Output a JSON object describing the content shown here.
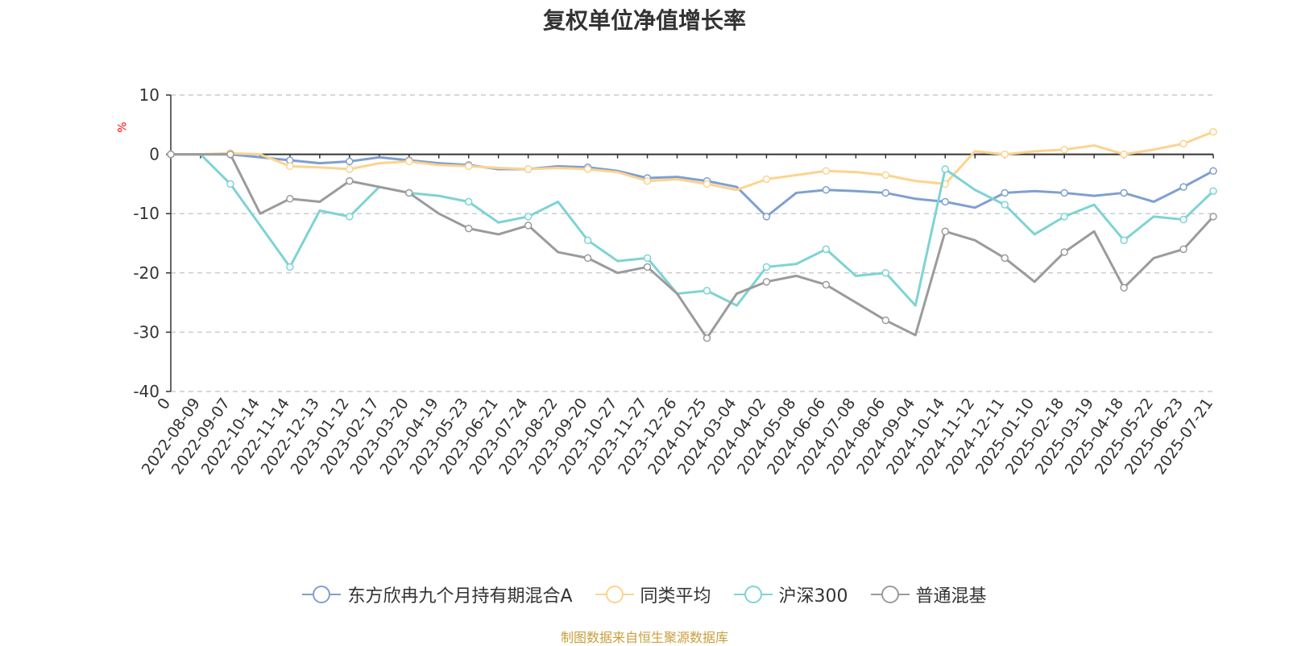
{
  "chart_data": {
    "type": "line",
    "title": "复权单位净值增长率",
    "ylabel": "%",
    "xlabel": "",
    "ylim": [
      -40,
      10
    ],
    "yticks": [
      10,
      0,
      -10,
      -20,
      -30,
      -40
    ],
    "grid": true,
    "legend_position": "bottom",
    "x_start": "0",
    "x": [
      "2022-08-09",
      "2022-09-07",
      "2022-10-14",
      "2022-11-14",
      "2022-12-13",
      "2023-01-12",
      "2023-02-17",
      "2023-03-20",
      "2023-04-19",
      "2023-05-23",
      "2023-06-21",
      "2023-07-24",
      "2023-08-22",
      "2023-09-20",
      "2023-10-27",
      "2023-11-27",
      "2023-12-26",
      "2024-01-25",
      "2024-03-04",
      "2024-04-02",
      "2024-05-08",
      "2024-06-06",
      "2024-07-08",
      "2024-08-06",
      "2024-09-04",
      "2024-10-14",
      "2024-11-12",
      "2024-12-11",
      "2025-01-10",
      "2025-02-18",
      "2025-03-19",
      "2025-04-18",
      "2025-05-22",
      "2025-06-23",
      "2025-07-21"
    ],
    "series": [
      {
        "name": "东方欣冉九个月持有期混合A",
        "color": "#7f9fd1",
        "values": [
          0,
          0,
          -0.5,
          -1.0,
          -1.5,
          -1.2,
          -0.5,
          -1.0,
          -1.5,
          -1.8,
          -2.5,
          -2.5,
          -2.0,
          -2.2,
          -2.8,
          -4.0,
          -3.8,
          -4.5,
          -5.5,
          -10.5,
          -6.5,
          -6.0,
          -6.2,
          -6.5,
          -7.5,
          -8.0,
          -9.0,
          -6.5,
          -6.2,
          -6.5,
          -7.0,
          -6.5,
          -8.0,
          -5.5,
          -2.8
        ]
      },
      {
        "name": "同类平均",
        "color": "#fdd38e",
        "values": [
          0,
          0.2,
          0,
          -2.0,
          -2.2,
          -2.5,
          -1.5,
          -1.2,
          -1.8,
          -2.0,
          -2.3,
          -2.5,
          -2.3,
          -2.5,
          -3.0,
          -4.5,
          -4.2,
          -5.0,
          -6.0,
          -4.2,
          -3.5,
          -2.8,
          -3.0,
          -3.5,
          -4.5,
          -5.0,
          0.5,
          0,
          0.5,
          0.8,
          1.5,
          0,
          0.8,
          1.8,
          3.8
        ]
      },
      {
        "name": "沪深300",
        "color": "#7ed3d5",
        "values": [
          0,
          -5.0,
          -12.0,
          -19.0,
          -9.5,
          -10.5,
          -5.5,
          -6.5,
          -7.0,
          -8.0,
          -11.5,
          -10.5,
          -8.0,
          -14.5,
          -18.0,
          -17.5,
          -23.5,
          -23.0,
          -25.5,
          -19.0,
          -18.5,
          -16.0,
          -20.5,
          -20.0,
          -25.5,
          -2.5,
          -6.0,
          -8.5,
          -13.5,
          -10.5,
          -8.5,
          -14.5,
          -10.5,
          -11.0,
          -6.2
        ]
      },
      {
        "name": "普通混基",
        "color": "#9b9b9b",
        "values": [
          0,
          0,
          -10.0,
          -7.5,
          -8.0,
          -4.5,
          -5.5,
          -6.5,
          -10.0,
          -12.5,
          -13.5,
          -12.0,
          -16.5,
          -17.5,
          -20.0,
          -19.0,
          -23.5,
          -31.0,
          -23.5,
          -21.5,
          -20.5,
          -22.0,
          -25.0,
          -28.0,
          -30.5,
          -13.0,
          -14.5,
          -17.5,
          -21.5,
          -16.5,
          -13.0,
          -22.5,
          -17.5,
          -16.0,
          -10.5
        ]
      }
    ],
    "source_note": "制图数据来自恒生聚源数据库"
  }
}
